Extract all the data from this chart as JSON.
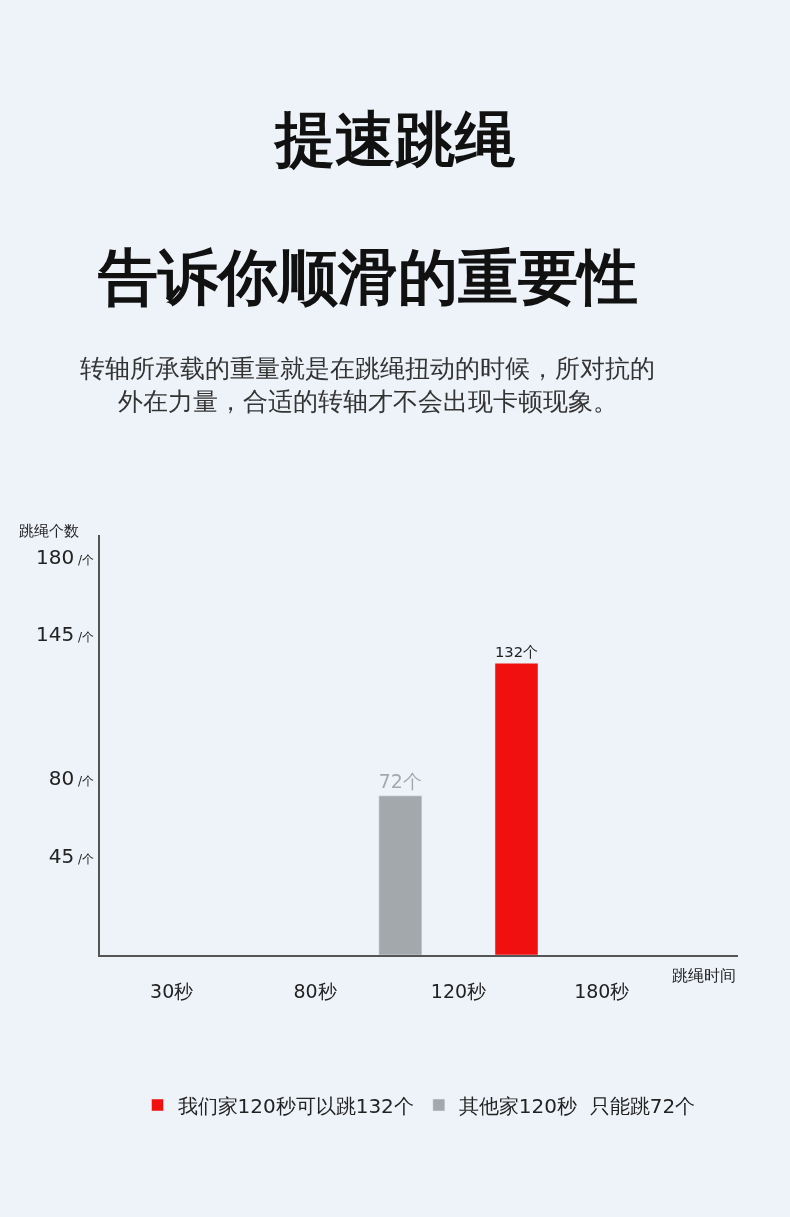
{
  "chart_data": {
    "type": "bar",
    "title": "提速跳绳",
    "subtitle": "告诉你顺滑的重要性",
    "annotations": [
      "转轴所承载的重量就是在跳绳扭动的时候，所对抗的外在力量，合适的转轴才不会出现卡顿现象。"
    ],
    "ylabel": "跳绳个数",
    "xlabel": "跳绳时间",
    "categories": [
      "30秒",
      "80秒",
      "120秒",
      "180秒"
    ],
    "series": [
      {
        "name": "其他家120秒  只能跳72个",
        "color": "#a3a8ad",
        "values": [
          null,
          null,
          72,
          null
        ],
        "value_labels": [
          null,
          null,
          "72个",
          null
        ]
      },
      {
        "name": "我们家120秒可以跳132个",
        "color": "#f01010",
        "values": [
          null,
          null,
          132,
          null
        ],
        "value_labels": [
          null,
          null,
          "132个",
          null
        ]
      }
    ],
    "ylim": [
      0,
      190
    ],
    "yticks": [
      {
        "value": 45,
        "label": "45 /个"
      },
      {
        "value": 80,
        "label": "80 /个"
      },
      {
        "value": 145,
        "label": "145 /个"
      },
      {
        "value": 180,
        "label": "180 /个"
      }
    ],
    "grid": false,
    "legend": "bottom"
  }
}
